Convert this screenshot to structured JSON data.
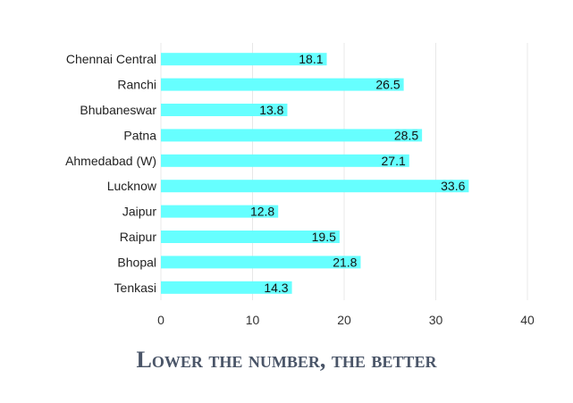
{
  "chart_data": {
    "type": "bar",
    "orientation": "horizontal",
    "title": "Lower the number, the better",
    "categories": [
      "Chennai Central",
      "Ranchi",
      "Bhubaneswar",
      "Patna",
      "Ahmedabad (W)",
      "Lucknow",
      "Jaipur",
      "Raipur",
      "Bhopal",
      "Tenkasi"
    ],
    "values": [
      18.1,
      26.5,
      13.8,
      28.5,
      27.1,
      33.6,
      12.8,
      19.5,
      21.8,
      14.3
    ],
    "value_labels": [
      "18.1",
      "26.5",
      "13.8",
      "28.5",
      "27.1",
      "33.6",
      "12.8",
      "19.5",
      "21.8",
      "14.3"
    ],
    "xticks": [
      "0",
      "10",
      "20",
      "30",
      "40"
    ],
    "xlim": [
      0,
      40
    ],
    "xlabel": "",
    "ylabel": "",
    "grid": true,
    "legend": "none",
    "bar_color": "#66ffff"
  }
}
